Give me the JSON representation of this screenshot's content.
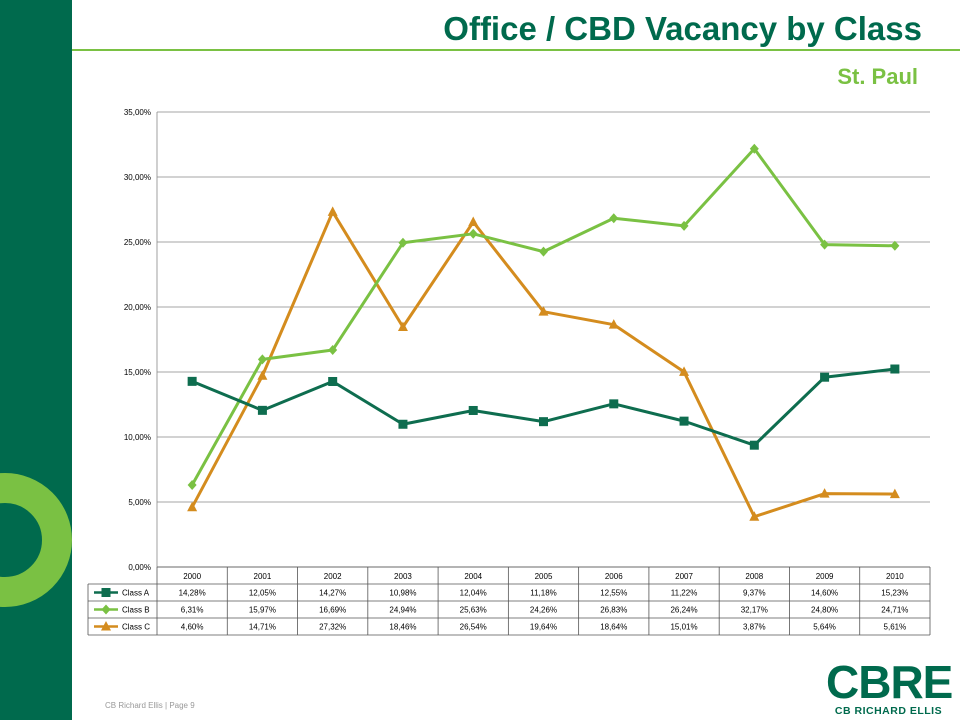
{
  "page": {
    "title": "Office / CBD Vacancy by Class",
    "subtitle": "St. Paul",
    "footer": "CB Richard Ellis | Page 9",
    "logo_main": "CBRE",
    "logo_sub": "CB RICHARD ELLIS"
  },
  "colors": {
    "brand_green": "#006a4d",
    "accent_green": "#7ac143",
    "class_a": "#0e6d4f",
    "class_b": "#7ac143",
    "class_c": "#d48c1e"
  },
  "chart_data": {
    "type": "line",
    "categories": [
      "2000",
      "2001",
      "2002",
      "2003",
      "2004",
      "2005",
      "2006",
      "2007",
      "2008",
      "2009",
      "2010"
    ],
    "y_ticks": [
      "35,00%",
      "30,00%",
      "25,00%",
      "20,00%",
      "15,00%",
      "10,00%",
      "5,00%",
      "0,00%"
    ],
    "ylim": [
      0,
      35
    ],
    "grid": true,
    "legend": "data-table",
    "series": [
      {
        "name": "Class A",
        "marker": "square",
        "values": [
          14.28,
          12.05,
          14.27,
          10.98,
          12.04,
          11.18,
          12.55,
          11.22,
          9.37,
          14.6,
          15.23
        ],
        "labels": [
          "14,28%",
          "12,05%",
          "14,27%",
          "10,98%",
          "12,04%",
          "11,18%",
          "12,55%",
          "11,22%",
          "9,37%",
          "14,60%",
          "15,23%"
        ]
      },
      {
        "name": "Class B",
        "marker": "diamond",
        "values": [
          6.31,
          15.97,
          16.69,
          24.94,
          25.63,
          24.26,
          26.83,
          26.24,
          32.17,
          24.8,
          24.71
        ],
        "labels": [
          "6,31%",
          "15,97%",
          "16,69%",
          "24,94%",
          "25,63%",
          "24,26%",
          "26,83%",
          "26,24%",
          "32,17%",
          "24,80%",
          "24,71%"
        ]
      },
      {
        "name": "Class C",
        "marker": "triangle",
        "values": [
          4.6,
          14.71,
          27.32,
          18.46,
          26.54,
          19.64,
          18.64,
          15.01,
          3.87,
          5.64,
          5.61
        ],
        "labels": [
          "4,60%",
          "14,71%",
          "27,32%",
          "18,46%",
          "26,54%",
          "19,64%",
          "18,64%",
          "15,01%",
          "3,87%",
          "5,64%",
          "5,61%"
        ]
      }
    ]
  }
}
